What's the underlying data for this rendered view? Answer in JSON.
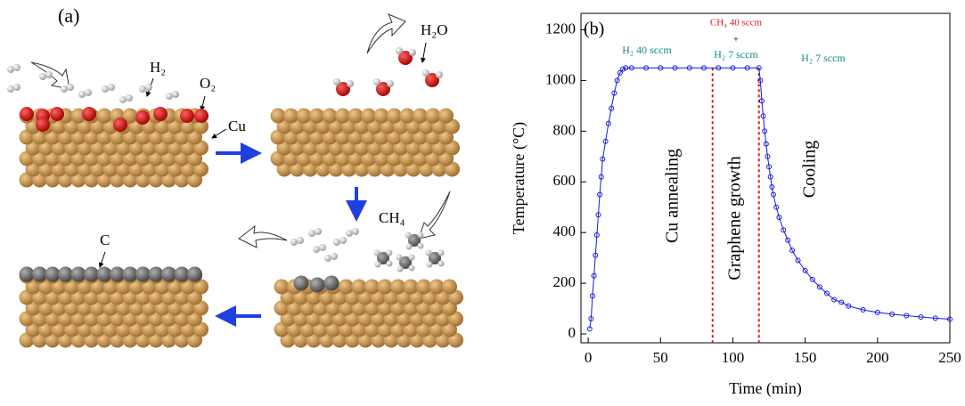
{
  "diagram": {
    "panel_label": "(a)",
    "labels": [
      "H₂",
      "O₂",
      "Cu",
      "H₂O",
      "CH₄",
      "C"
    ]
  },
  "chart_data": {
    "type": "scatter",
    "panel_label": "(b)",
    "x_label": "Time (min)",
    "y_label": "Temperature (°C)",
    "xlim": [
      -5,
      250
    ],
    "ylim": [
      -35,
      1265
    ],
    "xticks": [
      0,
      50,
      100,
      150,
      200,
      250
    ],
    "yticks": [
      0,
      200,
      400,
      600,
      800,
      1000,
      1200
    ],
    "series": [
      {
        "color": "#1a1adb",
        "x": [
          1,
          2,
          3,
          4,
          5,
          6,
          7,
          8,
          9,
          10,
          12,
          14,
          16,
          18,
          20,
          22,
          24,
          26,
          30,
          40,
          50,
          60,
          70,
          80,
          90,
          100,
          110,
          118,
          119,
          120,
          121,
          122,
          123,
          124,
          125,
          126,
          127,
          128,
          130,
          132,
          135,
          138,
          141,
          145,
          150,
          155,
          160,
          165,
          170,
          175,
          180,
          190,
          200,
          210,
          220,
          230,
          240,
          250
        ],
        "values": [
          20,
          60,
          150,
          230,
          310,
          390,
          470,
          550,
          620,
          690,
          760,
          830,
          890,
          950,
          1000,
          1030,
          1045,
          1050,
          1050,
          1050,
          1050,
          1050,
          1050,
          1050,
          1050,
          1050,
          1050,
          1050,
          1000,
          920,
          860,
          800,
          750,
          700,
          660,
          620,
          580,
          550,
          500,
          460,
          410,
          370,
          330,
          290,
          250,
          215,
          185,
          160,
          135,
          125,
          110,
          95,
          85,
          78,
          72,
          67,
          62,
          58
        ]
      }
    ],
    "vlines": [
      86,
      118
    ],
    "vline_color": "#e0141e",
    "annotations": [
      "H₂ 40 sccm",
      "CH₄ 40 sccm",
      "+",
      "H₂ 7 sccm",
      "H₂ 7 sccm",
      "Cu annealing",
      "Graphene growth",
      "Cooling"
    ]
  }
}
